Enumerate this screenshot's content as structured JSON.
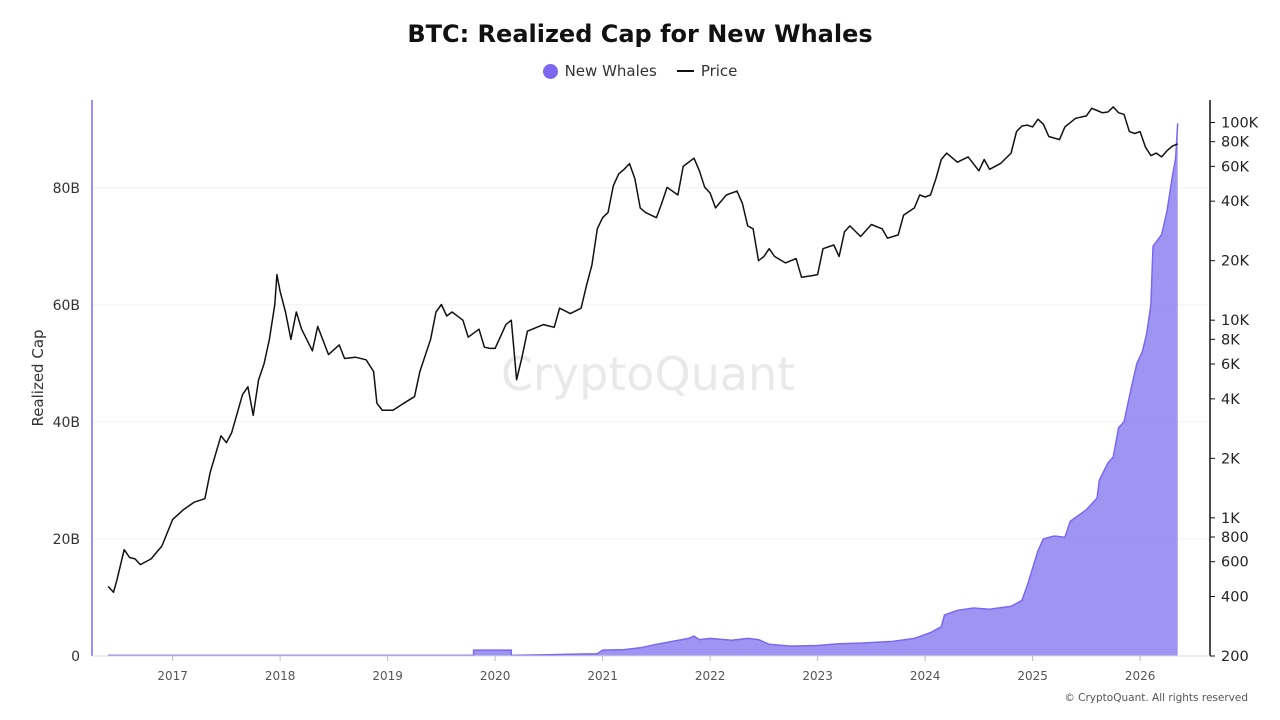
{
  "chart_data": {
    "type": "area",
    "title": "BTC: Realized Cap for New Whales",
    "ylabel": "Realized Cap",
    "watermark": "CryptoQuant",
    "credit": "© CryptoQuant. All rights reserved",
    "colors": {
      "whales": "#8b7cf0",
      "whales_line": "#7b68ee",
      "price": "#111111",
      "left_axis": "#7b68ee"
    },
    "legend": [
      {
        "label": "New Whales",
        "marker": "dot"
      },
      {
        "label": "Price",
        "marker": "line"
      }
    ],
    "left_axis": {
      "min": 0,
      "max": 95,
      "unit": "B",
      "ticks": [
        0,
        20,
        40,
        60,
        80
      ],
      "tick_labels": [
        "0",
        "20B",
        "40B",
        "60B",
        "80B"
      ]
    },
    "right_axis": {
      "scale": "log",
      "min": 200,
      "max": 130000,
      "ticks": [
        200,
        400,
        600,
        800,
        1000,
        2000,
        4000,
        6000,
        8000,
        10000,
        20000,
        40000,
        60000,
        80000,
        100000
      ],
      "tick_labels": [
        "200",
        "400",
        "600",
        "800",
        "1K",
        "2K",
        "4K",
        "6K",
        "8K",
        "10K",
        "20K",
        "40K",
        "60K",
        "80K",
        "100K"
      ]
    },
    "x_axis": {
      "min": 2016.25,
      "max": 2026.65,
      "ticks": [
        2017,
        2018,
        2019,
        2020,
        2021,
        2022,
        2023,
        2024,
        2025,
        2026
      ],
      "tick_labels": [
        "2017",
        "2018",
        "2019",
        "2020",
        "2021",
        "2022",
        "2023",
        "2024",
        "2025",
        "2026"
      ]
    },
    "series": [
      {
        "name": "New Whales",
        "axis": "left",
        "points": [
          [
            2016.4,
            0.1
          ],
          [
            2017.5,
            0.1
          ],
          [
            2018.5,
            0.1
          ],
          [
            2019.5,
            0.1
          ],
          [
            2019.8,
            0.1
          ],
          [
            2019.8,
            1.0
          ],
          [
            2020.15,
            1.0
          ],
          [
            2020.15,
            0.1
          ],
          [
            2020.5,
            0.2
          ],
          [
            2020.7,
            0.3
          ],
          [
            2020.95,
            0.4
          ],
          [
            2021.0,
            1.0
          ],
          [
            2021.2,
            1.1
          ],
          [
            2021.35,
            1.4
          ],
          [
            2021.5,
            2.0
          ],
          [
            2021.65,
            2.5
          ],
          [
            2021.8,
            3.0
          ],
          [
            2021.85,
            3.4
          ],
          [
            2021.9,
            2.8
          ],
          [
            2022.0,
            3.0
          ],
          [
            2022.2,
            2.7
          ],
          [
            2022.35,
            3.0
          ],
          [
            2022.45,
            2.8
          ],
          [
            2022.55,
            2.0
          ],
          [
            2022.75,
            1.7
          ],
          [
            2023.0,
            1.8
          ],
          [
            2023.2,
            2.1
          ],
          [
            2023.4,
            2.2
          ],
          [
            2023.7,
            2.5
          ],
          [
            2023.9,
            3.0
          ],
          [
            2024.05,
            4.0
          ],
          [
            2024.15,
            5.0
          ],
          [
            2024.18,
            7.0
          ],
          [
            2024.3,
            7.8
          ],
          [
            2024.45,
            8.2
          ],
          [
            2024.6,
            8.0
          ],
          [
            2024.8,
            8.5
          ],
          [
            2024.9,
            9.5
          ],
          [
            2024.95,
            12
          ],
          [
            2025.0,
            15
          ],
          [
            2025.05,
            18
          ],
          [
            2025.1,
            20
          ],
          [
            2025.2,
            20.5
          ],
          [
            2025.3,
            20.3
          ],
          [
            2025.35,
            23
          ],
          [
            2025.5,
            25
          ],
          [
            2025.6,
            27
          ],
          [
            2025.62,
            30
          ],
          [
            2025.7,
            33
          ],
          [
            2025.75,
            34
          ],
          [
            2025.8,
            39
          ],
          [
            2025.85,
            40
          ],
          [
            2025.92,
            46
          ],
          [
            2025.97,
            50
          ],
          [
            2026.02,
            52
          ],
          [
            2026.06,
            55
          ],
          [
            2026.1,
            60
          ],
          [
            2026.12,
            70
          ],
          [
            2026.16,
            71
          ],
          [
            2026.2,
            72
          ],
          [
            2026.25,
            76
          ],
          [
            2026.3,
            82
          ],
          [
            2026.33,
            85
          ],
          [
            2026.35,
            91
          ]
        ]
      },
      {
        "name": "Price",
        "axis": "right",
        "points": [
          [
            2016.4,
            450
          ],
          [
            2016.45,
            420
          ],
          [
            2016.48,
            480
          ],
          [
            2016.55,
            690
          ],
          [
            2016.6,
            630
          ],
          [
            2016.65,
            620
          ],
          [
            2016.7,
            580
          ],
          [
            2016.8,
            620
          ],
          [
            2016.9,
            720
          ],
          [
            2017.0,
            980
          ],
          [
            2017.1,
            1100
          ],
          [
            2017.2,
            1200
          ],
          [
            2017.3,
            1250
          ],
          [
            2017.35,
            1700
          ],
          [
            2017.45,
            2600
          ],
          [
            2017.5,
            2400
          ],
          [
            2017.55,
            2700
          ],
          [
            2017.65,
            4200
          ],
          [
            2017.7,
            4600
          ],
          [
            2017.75,
            3300
          ],
          [
            2017.8,
            5000
          ],
          [
            2017.85,
            6000
          ],
          [
            2017.9,
            8000
          ],
          [
            2017.95,
            12000
          ],
          [
            2017.97,
            17000
          ],
          [
            2018.0,
            14000
          ],
          [
            2018.05,
            11000
          ],
          [
            2018.1,
            8000
          ],
          [
            2018.15,
            11000
          ],
          [
            2018.2,
            9000
          ],
          [
            2018.3,
            7000
          ],
          [
            2018.35,
            9300
          ],
          [
            2018.45,
            6700
          ],
          [
            2018.55,
            7500
          ],
          [
            2018.6,
            6400
          ],
          [
            2018.7,
            6500
          ],
          [
            2018.8,
            6300
          ],
          [
            2018.87,
            5500
          ],
          [
            2018.9,
            3800
          ],
          [
            2018.95,
            3500
          ],
          [
            2019.05,
            3500
          ],
          [
            2019.15,
            3800
          ],
          [
            2019.25,
            4100
          ],
          [
            2019.3,
            5500
          ],
          [
            2019.4,
            8000
          ],
          [
            2019.45,
            11000
          ],
          [
            2019.5,
            12000
          ],
          [
            2019.55,
            10500
          ],
          [
            2019.6,
            11000
          ],
          [
            2019.7,
            10000
          ],
          [
            2019.75,
            8200
          ],
          [
            2019.85,
            9000
          ],
          [
            2019.9,
            7300
          ],
          [
            2019.95,
            7200
          ],
          [
            2020.0,
            7200
          ],
          [
            2020.1,
            9500
          ],
          [
            2020.15,
            10000
          ],
          [
            2020.2,
            5000
          ],
          [
            2020.25,
            6500
          ],
          [
            2020.3,
            8800
          ],
          [
            2020.45,
            9500
          ],
          [
            2020.55,
            9200
          ],
          [
            2020.6,
            11500
          ],
          [
            2020.7,
            10800
          ],
          [
            2020.8,
            11500
          ],
          [
            2020.85,
            15000
          ],
          [
            2020.9,
            19000
          ],
          [
            2020.95,
            29000
          ],
          [
            2021.0,
            33000
          ],
          [
            2021.05,
            35000
          ],
          [
            2021.1,
            48000
          ],
          [
            2021.15,
            55000
          ],
          [
            2021.2,
            58000
          ],
          [
            2021.25,
            62000
          ],
          [
            2021.3,
            52000
          ],
          [
            2021.35,
            37000
          ],
          [
            2021.4,
            35000
          ],
          [
            2021.5,
            33000
          ],
          [
            2021.55,
            39000
          ],
          [
            2021.6,
            47000
          ],
          [
            2021.7,
            43000
          ],
          [
            2021.75,
            60000
          ],
          [
            2021.85,
            66000
          ],
          [
            2021.9,
            57000
          ],
          [
            2021.95,
            47000
          ],
          [
            2022.0,
            44000
          ],
          [
            2022.05,
            37000
          ],
          [
            2022.15,
            43000
          ],
          [
            2022.25,
            45000
          ],
          [
            2022.3,
            39000
          ],
          [
            2022.35,
            30000
          ],
          [
            2022.4,
            29000
          ],
          [
            2022.45,
            20000
          ],
          [
            2022.5,
            21000
          ],
          [
            2022.55,
            23000
          ],
          [
            2022.6,
            21000
          ],
          [
            2022.7,
            19500
          ],
          [
            2022.8,
            20500
          ],
          [
            2022.85,
            16500
          ],
          [
            2022.95,
            16800
          ],
          [
            2023.0,
            17000
          ],
          [
            2023.05,
            23000
          ],
          [
            2023.15,
            24000
          ],
          [
            2023.2,
            21000
          ],
          [
            2023.25,
            28000
          ],
          [
            2023.3,
            30000
          ],
          [
            2023.4,
            26500
          ],
          [
            2023.5,
            30500
          ],
          [
            2023.6,
            29000
          ],
          [
            2023.65,
            26000
          ],
          [
            2023.75,
            27000
          ],
          [
            2023.8,
            34000
          ],
          [
            2023.9,
            37000
          ],
          [
            2023.95,
            43000
          ],
          [
            2024.0,
            42000
          ],
          [
            2024.05,
            43000
          ],
          [
            2024.1,
            52000
          ],
          [
            2024.15,
            65000
          ],
          [
            2024.2,
            70000
          ],
          [
            2024.3,
            63000
          ],
          [
            2024.4,
            67000
          ],
          [
            2024.5,
            57000
          ],
          [
            2024.55,
            65000
          ],
          [
            2024.6,
            58000
          ],
          [
            2024.7,
            62000
          ],
          [
            2024.8,
            70000
          ],
          [
            2024.85,
            90000
          ],
          [
            2024.9,
            96000
          ],
          [
            2024.95,
            97000
          ],
          [
            2025.0,
            95000
          ],
          [
            2025.05,
            104000
          ],
          [
            2025.1,
            98000
          ],
          [
            2025.15,
            85000
          ],
          [
            2025.25,
            82000
          ],
          [
            2025.3,
            95000
          ],
          [
            2025.4,
            105000
          ],
          [
            2025.5,
            108000
          ],
          [
            2025.55,
            118000
          ],
          [
            2025.6,
            115000
          ],
          [
            2025.65,
            112000
          ],
          [
            2025.7,
            113000
          ],
          [
            2025.75,
            120000
          ],
          [
            2025.8,
            112000
          ],
          [
            2025.85,
            110000
          ],
          [
            2025.9,
            90000
          ],
          [
            2025.95,
            88000
          ],
          [
            2026.0,
            90000
          ],
          [
            2026.05,
            75000
          ],
          [
            2026.1,
            68000
          ],
          [
            2026.15,
            70000
          ],
          [
            2026.2,
            67000
          ],
          [
            2026.25,
            72000
          ],
          [
            2026.3,
            76000
          ],
          [
            2026.35,
            78000
          ]
        ]
      }
    ]
  }
}
